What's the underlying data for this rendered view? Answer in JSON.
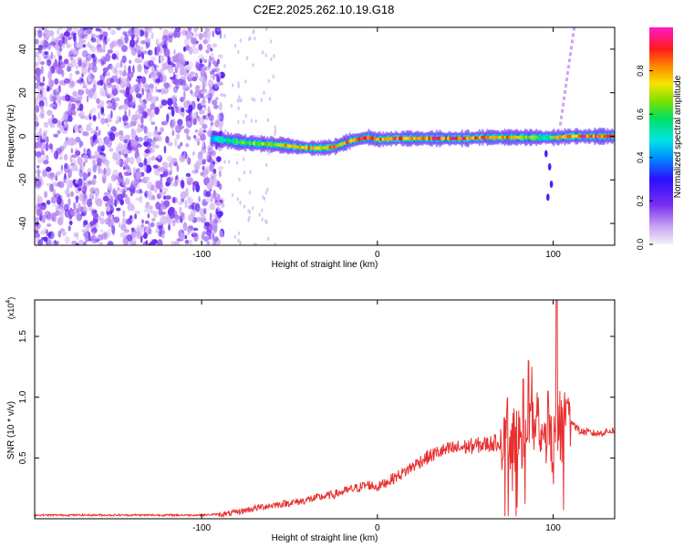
{
  "figure": {
    "title": "C2E2.2025.262.10.19.G18"
  },
  "chart_data": [
    {
      "type": "heatmap",
      "xlabel": "Height of straight line (km)",
      "ylabel": "Frequency (Hz)",
      "xlim": [
        -195,
        135
      ],
      "ylim": [
        -50,
        50
      ],
      "x_ticks": [
        -100,
        0,
        100
      ],
      "x_tick_labels": [
        "-100",
        "0",
        "100"
      ],
      "y_ticks": [
        -40,
        -20,
        0,
        20,
        40
      ],
      "y_tick_labels": [
        "-40",
        "-20",
        "0",
        "20",
        "40"
      ],
      "colorbar": {
        "label": "Normalized spectral amplitude",
        "range": [
          0,
          1
        ],
        "ticks": [
          0.0,
          0.2,
          0.4,
          0.6,
          0.8
        ],
        "tick_labels": [
          "0.0",
          "0.2",
          "0.4",
          "0.6",
          "0.8"
        ],
        "colormap": "rainbow (purple-blue-cyan-green-yellow-red-magenta)"
      },
      "features": {
        "noise_region_x": [
          -195,
          -88
        ],
        "noise_amplitude_range": [
          0.05,
          0.2
        ],
        "signal_track": {
          "x": [
            -94,
            -85,
            -75,
            -65,
            -55,
            -45,
            -35,
            -25,
            -15,
            -5,
            0,
            10,
            20,
            30,
            40,
            50,
            60,
            70,
            80,
            90,
            97,
            102,
            110,
            120,
            135
          ],
          "frequency_hz": [
            -1,
            -2,
            -3,
            -3.5,
            -4,
            -5,
            -5.5,
            -5,
            -2,
            -0.5,
            -1.5,
            -1,
            -1,
            -1,
            -1,
            -1,
            -0.5,
            -0.5,
            -0.5,
            -0.5,
            -0.5,
            -0.5,
            0,
            0,
            0
          ],
          "amplitude": [
            0.5,
            0.6,
            0.7,
            0.75,
            0.8,
            0.85,
            0.85,
            0.85,
            0.9,
            0.9,
            0.9,
            0.95,
            0.95,
            0.95,
            0.95,
            0.95,
            0.9,
            0.9,
            0.85,
            0.7,
            0.6,
            0.9,
            0.95,
            0.95,
            0.9
          ]
        }
      }
    },
    {
      "type": "line",
      "xlabel": "Height of straight line (km)",
      "ylabel": "SNR (10 * v/v)",
      "scale_label": "(x10",
      "scale_exponent": "4",
      "scale_suffix": ")",
      "xlim": [
        -195,
        135
      ],
      "ylim": [
        0,
        1.8
      ],
      "x_ticks": [
        -100,
        0,
        100
      ],
      "x_tick_labels": [
        "-100",
        "0",
        "100"
      ],
      "y_ticks": [
        0.5,
        1.0,
        1.5
      ],
      "y_tick_labels": [
        "0.5",
        "1.0",
        "1.5"
      ],
      "series": [
        {
          "color": "#e83030",
          "x": [
            -195,
            -150,
            -100,
            -85,
            -75,
            -65,
            -55,
            -45,
            -35,
            -25,
            -15,
            -5,
            0,
            5,
            15,
            25,
            35,
            45,
            55,
            65,
            75,
            85,
            90,
            95,
            100,
            105,
            108,
            115,
            125,
            135
          ],
          "y": [
            0.03,
            0.03,
            0.03,
            0.04,
            0.07,
            0.1,
            0.12,
            0.14,
            0.17,
            0.2,
            0.24,
            0.28,
            0.26,
            0.3,
            0.38,
            0.48,
            0.55,
            0.58,
            0.6,
            0.62,
            0.65,
            0.7,
            0.8,
            0.75,
            0.6,
            0.75,
            0.85,
            0.72,
            0.7,
            0.73
          ],
          "spikes": [
            {
              "x": 74,
              "y": 1.0
            },
            {
              "x": 83,
              "y": 1.15
            },
            {
              "x": 86,
              "y": 1.3
            },
            {
              "x": 88,
              "y": 1.25
            },
            {
              "x": 91,
              "y": 1.1
            },
            {
              "x": 94,
              "y": 0.7
            },
            {
              "x": 97,
              "y": 1.05
            },
            {
              "x": 102,
              "y": 1.8
            },
            {
              "x": 104,
              "y": 1.05
            },
            {
              "x": 108,
              "y": 0.95
            }
          ]
        }
      ]
    }
  ]
}
